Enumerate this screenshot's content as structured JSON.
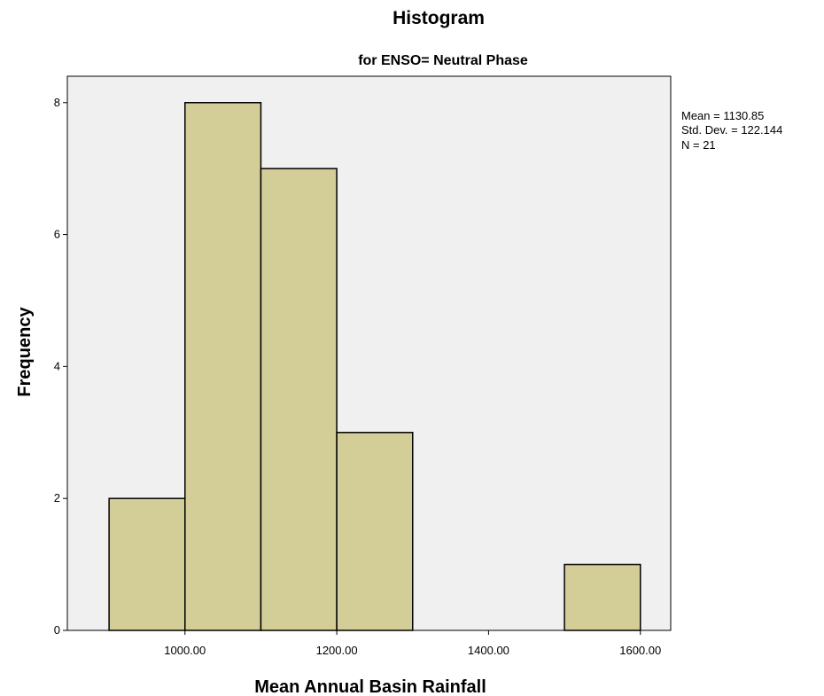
{
  "chart_data": {
    "type": "bar",
    "title": "Histogram",
    "subtitle": "for ENSO= Neutral Phase",
    "xlabel": "Mean Annual Basin Rainfall",
    "ylabel": "Frequency",
    "xlim": [
      845,
      1640
    ],
    "ylim": [
      0,
      8.4
    ],
    "x_ticks": [
      1000,
      1200,
      1400,
      1600
    ],
    "x_tick_labels": [
      "1000.00",
      "1200.00",
      "1400.00",
      "1600.00"
    ],
    "y_ticks": [
      0,
      2,
      4,
      6,
      8
    ],
    "y_tick_labels": [
      "0",
      "2",
      "4",
      "6",
      "8"
    ],
    "bin_edges": [
      900,
      1000,
      1100,
      1200,
      1300,
      1400,
      1500,
      1600
    ],
    "values": [
      2,
      8,
      7,
      3,
      0,
      0,
      1
    ],
    "grid": false,
    "colors": {
      "plot_background": "#f0f0f0",
      "bar_fill": "#d3ce97",
      "bar_stroke": "#000000"
    },
    "stats": {
      "mean": "Mean = 1130.85",
      "std_dev": "Std. Dev. = 122.144",
      "n": "N = 21"
    }
  }
}
